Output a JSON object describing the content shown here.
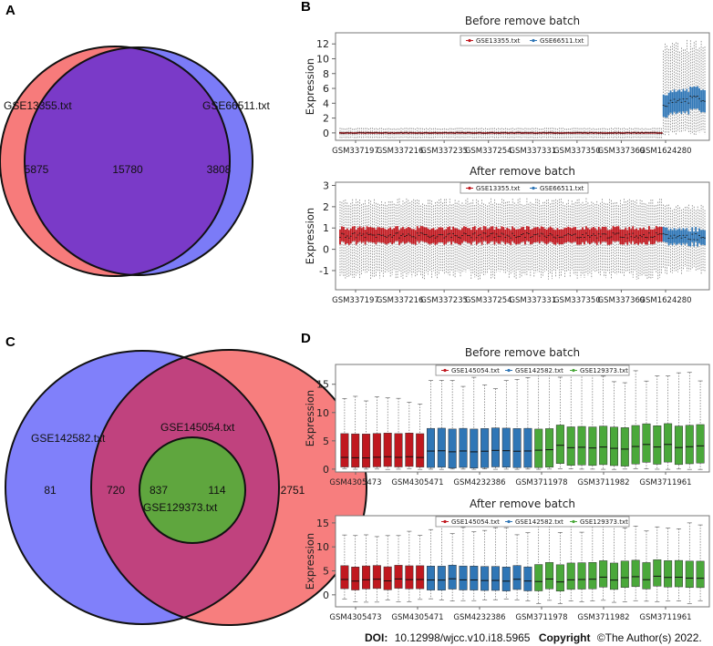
{
  "footer": {
    "doi_label": "DOI:",
    "doi_value": "10.12998/wjcc.v10.i18.5965",
    "copyright_label": "Copyright",
    "copyright_value": "©The Author(s) 2022."
  },
  "panels": {
    "A": "A",
    "B": "B",
    "C": "C",
    "D": "D"
  },
  "colors": {
    "venn_red": "#f77b7b",
    "venn_blue": "#7b7bf7",
    "venn_purple": "#7a3ac8",
    "venn_c_blue": "#8080fa",
    "venn_c_red": "#f77e7e",
    "venn_c_mag": "#c0427e",
    "venn_c_green": "#8ccb43",
    "venn_c_dgreen": "#5fa63e",
    "box_red": "#c0181f",
    "box_blue": "#2f76b6",
    "box_green": "#4aa83a"
  },
  "chart_data": [
    {
      "type": "venn",
      "id": "venn-a",
      "sets": [
        "GSE13355.txt",
        "GSE66511.txt"
      ],
      "counts": {
        "GSE13355_only": "5875",
        "both": "15780",
        "GSE66511_only": "3808"
      }
    },
    {
      "type": "venn",
      "id": "venn-c",
      "sets": [
        "GSE142582.txt",
        "GSE145054.txt",
        "GSE129373.txt"
      ],
      "counts": {
        "GSE142582_only": "81",
        "GSE142582_GSE145054": "720",
        "all_three": "837",
        "GSE145054_GSE129373": "114",
        "GSE145054_only": "2751"
      }
    },
    {
      "type": "box",
      "id": "b-before",
      "title": "Before remove batch",
      "ylabel": "Expression",
      "ylim": [
        -1,
        13.5
      ],
      "yticks": [
        "0",
        "2",
        "4",
        "6",
        "8",
        "10",
        "12"
      ],
      "legend": [
        "GSE13355.txt",
        "GSE66511.txt"
      ],
      "xticks": [
        "GSM337197",
        "GSM337216",
        "GSM337235",
        "GSM337254",
        "GSM337331",
        "GSM337350",
        "GSM337369",
        "GSM1624280"
      ],
      "groups": [
        {
          "name": "GSE13355.txt",
          "count": 180,
          "median": 0,
          "q1": -0.12,
          "q3": 0.12,
          "low": -0.7,
          "high": 0.7,
          "jitter": 0.04
        },
        {
          "name": "GSE66511.txt",
          "count": 24,
          "median": 3.9,
          "q1": 2.3,
          "q3": 5.3,
          "low": 0,
          "high": 12.3,
          "jitter": 0.5,
          "trend": 0.9
        }
      ]
    },
    {
      "type": "box",
      "id": "b-after",
      "title": "After remove batch",
      "ylabel": "Expression",
      "ylim": [
        -1.9,
        3.15
      ],
      "yticks": [
        "-1",
        "0",
        "1",
        "2",
        "3"
      ],
      "legend": [
        "GSE13355.txt",
        "GSE66511.txt"
      ],
      "xticks": [
        "GSM337197",
        "GSM337216",
        "GSM337235",
        "GSM337254",
        "GSM337331",
        "GSM337350",
        "GSM337369",
        "GSM1624280"
      ],
      "groups": [
        {
          "name": "GSE13355.txt",
          "count": 180,
          "median": 0.65,
          "q1": 0.3,
          "q3": 1.0,
          "low": -1.2,
          "high": 2.4,
          "jitter": 0.12
        },
        {
          "name": "GSE66511.txt",
          "count": 24,
          "median": 0.6,
          "q1": 0.25,
          "q3": 0.95,
          "low": -1.0,
          "high": 2.1,
          "jitter": 0.15
        }
      ]
    },
    {
      "type": "box",
      "id": "d-before",
      "title": "Before remove batch",
      "ylabel": "Expression",
      "ylim": [
        -0.5,
        18.5
      ],
      "yticks": [
        "0",
        "5",
        "10",
        "15"
      ],
      "legend": [
        "GSE145054.txt",
        "GSE142582.txt",
        "GSE129373.txt"
      ],
      "xticks": [
        "GSM4305473",
        "GSM4305471",
        "GSM4232386",
        "GSM3711978",
        "GSM3711982",
        "GSM3711961"
      ],
      "groups": [
        {
          "name": "GSE145054.txt",
          "count": 8,
          "median": 2.1,
          "q1": 0.4,
          "q3": 6.3,
          "low": 0,
          "high": 13.2,
          "jitter": 0.15
        },
        {
          "name": "GSE142582.txt",
          "count": 10,
          "median": 3.2,
          "q1": 0.3,
          "q3": 7.2,
          "low": 0,
          "high": 16.5,
          "jitter": 0.2
        },
        {
          "name": "GSE129373.txt",
          "count": 16,
          "median": 3.5,
          "q1": 0.4,
          "q3": 7.2,
          "low": 0,
          "high": 17.5,
          "jitter": 0.6,
          "trend": 1.0
        }
      ]
    },
    {
      "type": "box",
      "id": "d-after",
      "title": "After remove batch",
      "ylabel": "Expression",
      "ylim": [
        -2.5,
        16.5
      ],
      "yticks": [
        "0",
        "5",
        "10",
        "15"
      ],
      "legend": [
        "GSE145054.txt",
        "GSE142582.txt",
        "GSE129373.txt"
      ],
      "xticks": [
        "GSM4305473",
        "GSM4305471",
        "GSM4232386",
        "GSM3711978",
        "GSM3711982",
        "GSM3711961"
      ],
      "groups": [
        {
          "name": "GSE145054.txt",
          "count": 8,
          "median": 3.1,
          "q1": 1.2,
          "q3": 6.0,
          "low": -1.2,
          "high": 13.5,
          "jitter": 0.25
        },
        {
          "name": "GSE142582.txt",
          "count": 10,
          "median": 3.1,
          "q1": 1.0,
          "q3": 6.0,
          "low": -1.0,
          "high": 14.5,
          "jitter": 0.25
        },
        {
          "name": "GSE129373.txt",
          "count": 16,
          "median": 3.0,
          "q1": 1.0,
          "q3": 6.5,
          "low": -1.5,
          "high": 15.0,
          "jitter": 0.45,
          "trend": 0.8
        }
      ]
    }
  ]
}
